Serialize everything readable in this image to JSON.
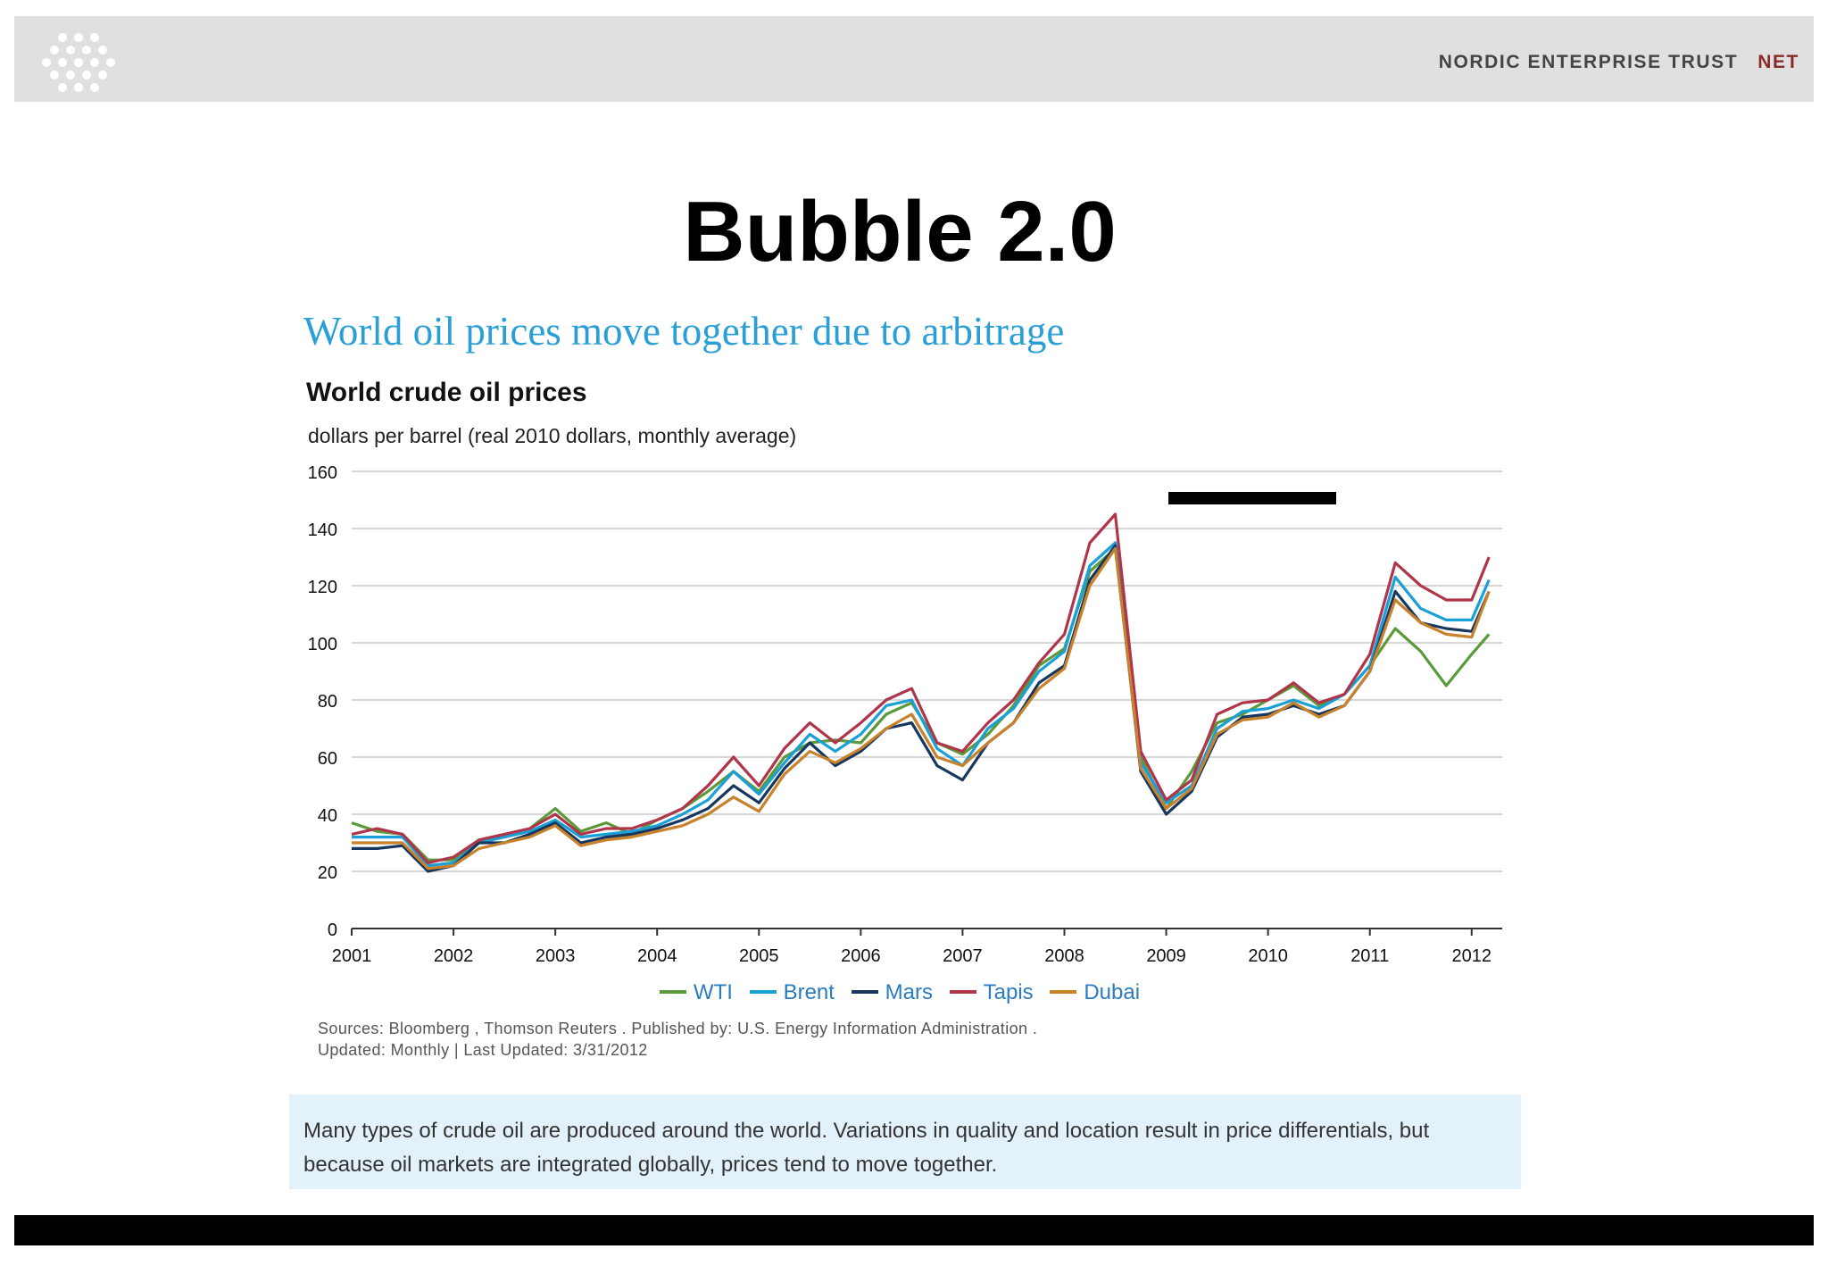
{
  "header": {
    "brand": "NORDIC ENTERPRISE TRUST",
    "brand_accent": "NET",
    "bar_color": "#e0e0e0",
    "accent_color": "#8a2a2a"
  },
  "slide_title": "Bubble 2.0",
  "subhead": "World oil prices move together due to arbitrage",
  "chart_data": {
    "type": "line",
    "title": "World crude oil prices",
    "subtitle": "dollars per barrel (real 2010 dollars, monthly average)",
    "ylim": [
      0,
      160
    ],
    "yticks": [
      0,
      20,
      40,
      60,
      80,
      100,
      120,
      140,
      160
    ],
    "xlim": [
      2001,
      2012.3
    ],
    "xticks": [
      2001,
      2002,
      2003,
      2004,
      2005,
      2006,
      2007,
      2008,
      2009,
      2010,
      2011,
      2012
    ],
    "grid": true,
    "legend_position": "bottom",
    "x": [
      2001.0,
      2001.25,
      2001.5,
      2001.75,
      2002.0,
      2002.25,
      2002.5,
      2002.75,
      2003.0,
      2003.25,
      2003.5,
      2003.75,
      2004.0,
      2004.25,
      2004.5,
      2004.75,
      2005.0,
      2005.25,
      2005.5,
      2005.75,
      2006.0,
      2006.25,
      2006.5,
      2006.75,
      2007.0,
      2007.25,
      2007.5,
      2007.75,
      2008.0,
      2008.25,
      2008.5,
      2008.75,
      2009.0,
      2009.25,
      2009.5,
      2009.75,
      2010.0,
      2010.25,
      2010.5,
      2010.75,
      2011.0,
      2011.25,
      2011.5,
      2011.75,
      2012.0,
      2012.17
    ],
    "series": [
      {
        "name": "WTI",
        "color": "#5b9a3a",
        "values": [
          37,
          34,
          33,
          24,
          24,
          31,
          33,
          35,
          42,
          34,
          37,
          33,
          38,
          42,
          48,
          55,
          48,
          60,
          65,
          66,
          65,
          75,
          79,
          65,
          61,
          68,
          78,
          92,
          98,
          125,
          133,
          60,
          42,
          55,
          72,
          75,
          80,
          85,
          78,
          82,
          92,
          105,
          97,
          85,
          96,
          103
        ]
      },
      {
        "name": "Brent",
        "color": "#1a9fd6",
        "values": [
          32,
          32,
          32,
          22,
          23,
          30,
          32,
          34,
          38,
          32,
          33,
          34,
          36,
          40,
          45,
          55,
          47,
          58,
          68,
          62,
          68,
          78,
          80,
          63,
          57,
          70,
          77,
          90,
          97,
          127,
          135,
          58,
          44,
          50,
          70,
          76,
          77,
          80,
          77,
          82,
          92,
          123,
          112,
          108,
          108,
          122
        ]
      },
      {
        "name": "Mars",
        "color": "#17375e",
        "values": [
          28,
          28,
          29,
          20,
          22,
          30,
          30,
          33,
          37,
          30,
          32,
          33,
          35,
          38,
          42,
          50,
          44,
          56,
          65,
          57,
          62,
          70,
          72,
          57,
          52,
          65,
          72,
          86,
          92,
          122,
          134,
          55,
          40,
          48,
          67,
          74,
          75,
          78,
          75,
          78,
          90,
          118,
          107,
          105,
          104,
          118
        ]
      },
      {
        "name": "Tapis",
        "color": "#b0344a",
        "values": [
          33,
          35,
          33,
          23,
          25,
          31,
          33,
          35,
          40,
          33,
          35,
          35,
          38,
          42,
          50,
          60,
          50,
          63,
          72,
          65,
          72,
          80,
          84,
          65,
          62,
          72,
          80,
          93,
          103,
          135,
          145,
          62,
          45,
          52,
          75,
          79,
          80,
          86,
          79,
          82,
          96,
          128,
          120,
          115,
          115,
          130
        ]
      },
      {
        "name": "Dubai",
        "color": "#c8822c",
        "values": [
          30,
          30,
          30,
          21,
          22,
          28,
          30,
          32,
          36,
          29,
          31,
          32,
          34,
          36,
          40,
          46,
          41,
          54,
          62,
          58,
          63,
          70,
          75,
          60,
          57,
          65,
          72,
          84,
          91,
          120,
          133,
          56,
          42,
          49,
          68,
          73,
          74,
          79,
          74,
          78,
          90,
          115,
          107,
          103,
          102,
          118
        ]
      }
    ]
  },
  "legend": {
    "items": [
      "WTI",
      "Brent",
      "Mars",
      "Tapis",
      "Dubai"
    ]
  },
  "sources": {
    "line1": "Sources:  Bloomberg ,  Thomson Reuters . Published by:  U.S. Energy Information Administration .",
    "line2": "Updated: Monthly | Last Updated: 3/31/2012"
  },
  "note": {
    "text": "Many types of crude oil are produced around the world. Variations in quality and location result in price differentials, but because oil markets are integrated globally, prices tend to move together.",
    "background": "#e3f1fa"
  },
  "footer": {
    "bar_color": "#000000"
  }
}
